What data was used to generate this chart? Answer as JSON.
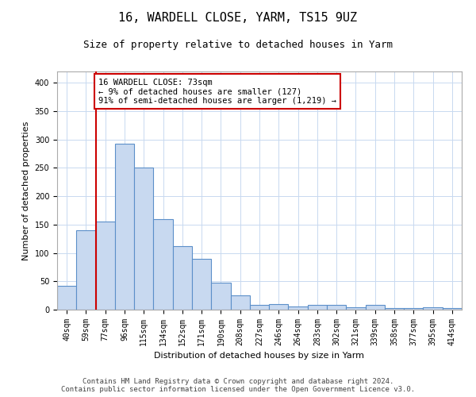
{
  "title": "16, WARDELL CLOSE, YARM, TS15 9UZ",
  "subtitle": "Size of property relative to detached houses in Yarm",
  "xlabel": "Distribution of detached houses by size in Yarm",
  "ylabel": "Number of detached properties",
  "categories": [
    "40sqm",
    "59sqm",
    "77sqm",
    "96sqm",
    "115sqm",
    "134sqm",
    "152sqm",
    "171sqm",
    "190sqm",
    "208sqm",
    "227sqm",
    "246sqm",
    "264sqm",
    "283sqm",
    "302sqm",
    "321sqm",
    "339sqm",
    "358sqm",
    "377sqm",
    "395sqm",
    "414sqm"
  ],
  "values": [
    42,
    140,
    155,
    293,
    250,
    160,
    112,
    90,
    47,
    25,
    9,
    10,
    6,
    9,
    9,
    4,
    9,
    3,
    3,
    4,
    3
  ],
  "bar_color": "#c8d9f0",
  "bar_edge_color": "#5b8fc9",
  "ylim": [
    0,
    420
  ],
  "yticks": [
    0,
    50,
    100,
    150,
    200,
    250,
    300,
    350,
    400
  ],
  "annotation_line_color": "#cc0000",
  "annotation_box_text": "16 WARDELL CLOSE: 73sqm\n← 9% of detached houses are smaller (127)\n91% of semi-detached houses are larger (1,219) →",
  "footer_line1": "Contains HM Land Registry data © Crown copyright and database right 2024.",
  "footer_line2": "Contains public sector information licensed under the Open Government Licence v3.0.",
  "background_color": "#ffffff",
  "grid_color": "#c8d9f0",
  "title_fontsize": 11,
  "subtitle_fontsize": 9,
  "axis_label_fontsize": 8,
  "tick_fontsize": 7,
  "annotation_fontsize": 7.5,
  "footer_fontsize": 6.5
}
